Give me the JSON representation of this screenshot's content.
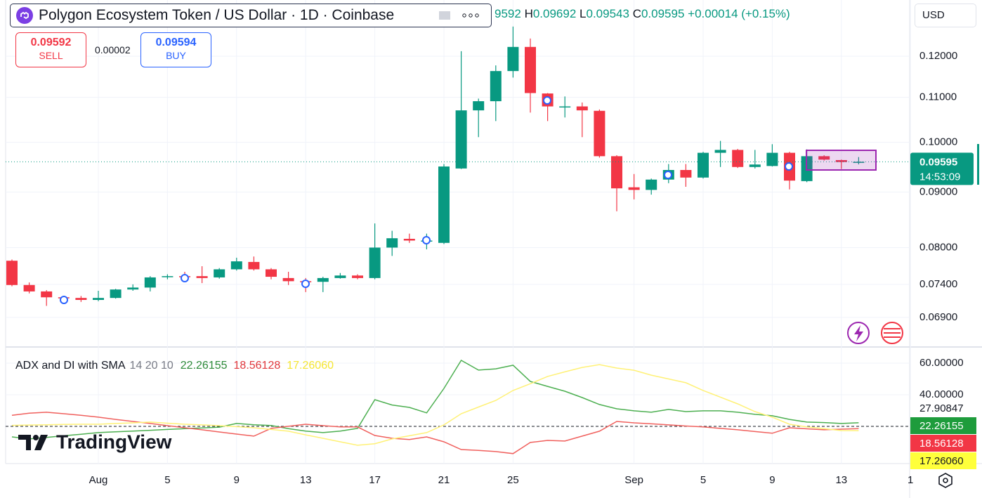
{
  "header": {
    "title": "Polygon Ecosystem Token / US Dollar · 1D · Coinbase",
    "ohlc": [
      {
        "value": "9592"
      },
      {
        "label": "H",
        "value": "0.09692"
      },
      {
        "label": "L",
        "value": "0.09543"
      },
      {
        "label": "C",
        "value": "0.09595"
      }
    ],
    "change": "+0.00014 (+0.15%)",
    "currency": "USD"
  },
  "trade": {
    "sell_price": "0.09592",
    "sell_label": "SELL",
    "spread": "0.00002",
    "buy_price": "0.09594",
    "buy_label": "BUY"
  },
  "brand": "TradingView",
  "chart_data": [
    {
      "type": "candlestick",
      "categories": [
        null,
        null,
        null,
        null,
        null,
        "Aug",
        null,
        null,
        null,
        "5",
        null,
        null,
        null,
        "9",
        null,
        null,
        null,
        "13",
        null,
        null,
        null,
        "17",
        null,
        null,
        null,
        "21",
        null,
        null,
        null,
        "25",
        null,
        null,
        null,
        null,
        null,
        null,
        "Sep",
        null,
        null,
        null,
        "5",
        null,
        null,
        null,
        "9",
        null,
        null,
        null,
        "13",
        null,
        null,
        null,
        "1"
      ],
      "open": [
        0.0778,
        0.0739,
        0.0729,
        0.072,
        0.0719,
        0.0716,
        0.0719,
        0.0732,
        0.0735,
        0.0752,
        0.0753,
        0.0753,
        0.0751,
        0.0764,
        0.0776,
        0.0764,
        0.075,
        0.0745,
        0.0744,
        0.075,
        0.0754,
        0.075,
        0.08,
        0.0815,
        0.0812,
        0.0808,
        0.0946,
        0.107,
        0.1091,
        0.1163,
        0.1224,
        0.1109,
        0.1079,
        0.1079,
        0.1069,
        0.0971,
        0.0909,
        0.0904,
        0.0924,
        0.0943,
        0.0928,
        0.0978,
        0.0984,
        0.0949,
        0.0951,
        0.0978,
        0.0921,
        0.0971,
        0.0963,
        0.09592,
        null,
        null,
        null
      ],
      "high": [
        0.078,
        0.0743,
        0.0731,
        0.0722,
        0.0722,
        0.073,
        0.0733,
        0.074,
        0.0753,
        0.0756,
        0.076,
        0.0769,
        0.0766,
        0.0783,
        0.0785,
        0.0766,
        0.076,
        0.075,
        0.0752,
        0.0758,
        0.0756,
        0.0842,
        0.0829,
        0.0824,
        0.0824,
        0.0955,
        0.1213,
        0.1097,
        0.1177,
        0.1278,
        0.1246,
        0.111,
        0.1102,
        0.1088,
        0.1072,
        0.0973,
        0.0935,
        0.0926,
        0.0955,
        0.0955,
        0.098,
        0.1003,
        0.0986,
        0.0984,
        0.0996,
        0.098,
        0.0985,
        0.0973,
        0.0964,
        0.09692,
        null,
        null,
        null
      ],
      "low": [
        0.0737,
        0.0726,
        0.0707,
        0.071,
        0.0713,
        0.0714,
        0.0718,
        0.073,
        0.0729,
        0.0748,
        0.0745,
        0.0742,
        0.0749,
        0.0762,
        0.0762,
        0.0748,
        0.0739,
        0.0728,
        0.0728,
        0.0749,
        0.0748,
        0.0748,
        0.0786,
        0.0808,
        0.0797,
        0.0806,
        0.0945,
        0.1011,
        0.1046,
        0.1147,
        0.1065,
        0.1046,
        0.1054,
        0.1011,
        0.0968,
        0.0864,
        0.0886,
        0.0895,
        0.0917,
        0.091,
        0.0926,
        0.0949,
        0.0947,
        0.0946,
        0.095,
        0.0905,
        0.0919,
        0.0962,
        0.0945,
        0.09543,
        null,
        null,
        null
      ],
      "close": [
        0.0739,
        0.0729,
        0.072,
        0.0719,
        0.0716,
        0.0719,
        0.0732,
        0.0735,
        0.0751,
        0.0753,
        0.0752,
        0.075,
        0.0764,
        0.0777,
        0.0764,
        0.0752,
        0.0745,
        0.0744,
        0.075,
        0.0754,
        0.075,
        0.08,
        0.0816,
        0.0812,
        0.0812,
        0.095,
        0.107,
        0.1091,
        0.1163,
        0.1224,
        0.111,
        0.1079,
        0.1079,
        0.107,
        0.0971,
        0.0907,
        0.0904,
        0.0924,
        0.0943,
        0.0928,
        0.0978,
        0.0984,
        0.0949,
        0.0954,
        0.0978,
        0.0922,
        0.0971,
        0.0964,
        0.0959,
        0.09595,
        null,
        null,
        null
      ],
      "up_color": "#089981",
      "down_color": "#f23645",
      "log_scale": true,
      "grid": true,
      "ylim": [
        0.0649,
        0.1352
      ],
      "yticks": [
        {
          "value": 0.12,
          "label": "0.12000"
        },
        {
          "value": 0.11,
          "label": "0.11000"
        },
        {
          "value": 0.1,
          "label": "0.10000"
        },
        {
          "value": 0.09,
          "label": "0.09000"
        },
        {
          "value": 0.08,
          "label": "0.08000"
        },
        {
          "value": 0.074,
          "label": "0.07400"
        },
        {
          "value": 0.069,
          "label": "0.06900"
        }
      ],
      "last_price": {
        "value": 0.09595,
        "label": "0.09595"
      },
      "countdown": "14:53:09"
    },
    {
      "type": "line",
      "title": "ADX and DI with SMA",
      "params": "14 20 10",
      "ylim": [
        -3.6,
        69.8
      ],
      "yticks": [
        {
          "value": 60,
          "label": "60.00000"
        },
        {
          "value": 40,
          "label": "40.00000"
        }
      ],
      "hline": 20,
      "series": [
        {
          "color": "#4caf50",
          "values": [
            13.3,
            12,
            13,
            14,
            15,
            16,
            16.5,
            17,
            17.5,
            18,
            18.5,
            19,
            19.5,
            21.8,
            21,
            20.5,
            18.5,
            17,
            16,
            17,
            18.7,
            36.9,
            33.5,
            32,
            28.5,
            44,
            61.8,
            55.6,
            56.4,
            58.7,
            48.4,
            45.3,
            42.2,
            38.2,
            33.8,
            31.1,
            29.8,
            28.9,
            30.7,
            29.3,
            29.8,
            29.8,
            28.9,
            27.6,
            26.7,
            24.4,
            22.7,
            22.4,
            21.8,
            22.26155,
            null,
            null,
            null
          ]
        },
        {
          "color": "#f0605d",
          "values": [
            27,
            28.3,
            28.9,
            28,
            27,
            25.8,
            24.4,
            23.1,
            21.8,
            20.4,
            19.1,
            17.8,
            16.4,
            15.1,
            13.8,
            18.7,
            20,
            21.3,
            20.4,
            19.6,
            19.6,
            14.2,
            12.4,
            11.6,
            13.3,
            10.2,
            5.3,
            4.7,
            4,
            2.7,
            9.8,
            11.1,
            10.7,
            13.8,
            16.9,
            23.1,
            22.2,
            21.6,
            20.9,
            20.2,
            19.6,
            18.7,
            17.8,
            16.7,
            15.6,
            19.1,
            18.4,
            17.8,
            18.2,
            18.56128,
            null,
            null,
            null
          ]
        },
        {
          "color": "#fff176",
          "values": [
            20.6,
            20.8,
            21,
            21.2,
            21.3,
            21.3,
            21.8,
            22.2,
            22.7,
            22,
            21.3,
            20.9,
            20.4,
            19.8,
            19.1,
            18,
            16.9,
            14.6,
            12.4,
            10.2,
            8,
            9,
            12,
            14,
            16,
            20.9,
            28,
            32.2,
            36.4,
            42.7,
            47,
            51.6,
            54.5,
            57.3,
            59.1,
            56.9,
            55.5,
            52.4,
            50,
            47.6,
            42.7,
            38.5,
            34.2,
            29.3,
            25.8,
            21.3,
            19.6,
            18.5,
            17.3,
            17.2606,
            null,
            null,
            null
          ]
        }
      ],
      "tags": [
        {
          "value": 27.90847,
          "label": "27.90847",
          "color": "#ffffff",
          "text_color": "#131722"
        },
        {
          "value": 22.26155,
          "label": "22.26155",
          "color": "#1e9c3c",
          "text_color": "#ffffff"
        },
        {
          "value": 18.56128,
          "label": "18.56128",
          "color": "#f23645",
          "text_color": "#ffffff"
        },
        {
          "value": 17.2606,
          "label": "17.26060",
          "color": "#ffff3b",
          "text_color": "#131722"
        }
      ]
    }
  ]
}
